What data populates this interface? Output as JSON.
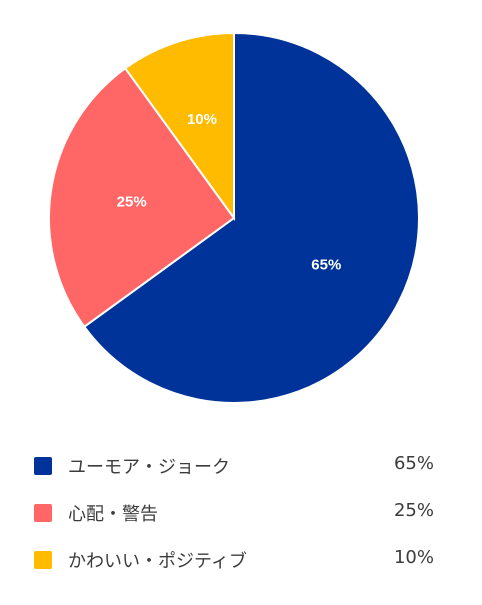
{
  "chart_data": {
    "type": "pie",
    "categories": [
      "ユーモア・ジョーク",
      "心配・警告",
      "かわいい・ポジティブ"
    ],
    "values": [
      65,
      25,
      10
    ],
    "colors": [
      "#003399",
      "#ff6666",
      "#ffbb00"
    ],
    "slice_labels": [
      "65%",
      "25%",
      "10%"
    ],
    "start_angle": "12 o'clock, clockwise",
    "legend_position": "bottom"
  },
  "legend": {
    "items": [
      {
        "label": "ユーモア・ジョーク",
        "value": "65%",
        "color": "#003399"
      },
      {
        "label": "心配・警告",
        "value": "25%",
        "color": "#ff6666"
      },
      {
        "label": "かわいい・ポジティブ",
        "value": "10%",
        "color": "#ffbb00"
      }
    ]
  }
}
